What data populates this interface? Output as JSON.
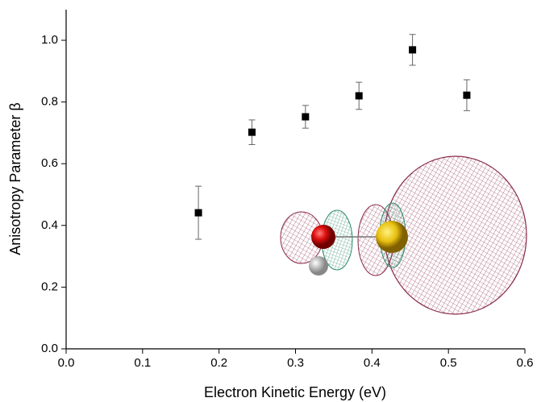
{
  "chart_data": {
    "type": "scatter",
    "x_label": "Electron Kinetic Energy (eV)",
    "y_label": "Anisotropy Parameter β",
    "x": [
      0.173,
      0.243,
      0.313,
      0.383,
      0.453,
      0.524
    ],
    "values": [
      0.441,
      0.702,
      0.752,
      0.82,
      0.969,
      0.822
    ],
    "errors": [
      0.086,
      0.04,
      0.037,
      0.044,
      0.05,
      0.05
    ],
    "color": "#000000",
    "error_color": "#666666",
    "xlim": [
      0,
      0.6
    ],
    "ylim": [
      0,
      1.1
    ],
    "xticks": [
      {
        "value": 0,
        "label": "0.0"
      },
      0.1,
      0.2,
      0.3,
      0.4,
      0.5,
      0.6
    ],
    "yticks": [
      {
        "value": 0,
        "label": "0.0"
      },
      0.2,
      0.4,
      0.6,
      0.8,
      {
        "value": 1,
        "label": "1.0"
      }
    ]
  }
}
